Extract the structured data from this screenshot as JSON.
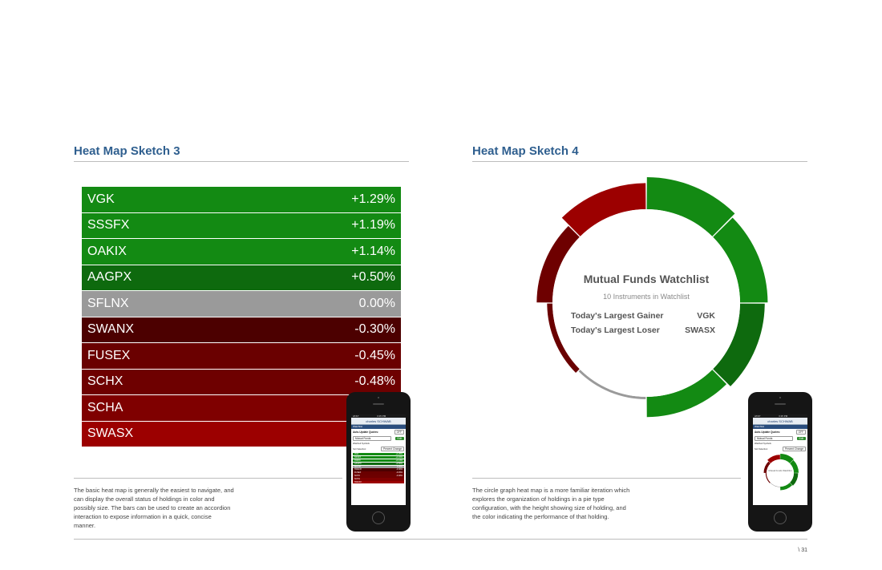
{
  "left": {
    "title": "Heat Map Sketch 3",
    "rows": [
      {
        "symbol": "VGK",
        "change": "+1.29%",
        "color": "#138a13"
      },
      {
        "symbol": "SSSFX",
        "change": "+1.19%",
        "color": "#138a13"
      },
      {
        "symbol": "OAKIX",
        "change": "+1.14%",
        "color": "#138a13"
      },
      {
        "symbol": "AAGPX",
        "change": "+0.50%",
        "color": "#0e6a0e"
      },
      {
        "symbol": "SFLNX",
        "change": "0.00%",
        "color": "#9a9a9a"
      },
      {
        "symbol": "SWANX",
        "change": "-0.30%",
        "color": "#4c0000"
      },
      {
        "symbol": "FUSEX",
        "change": "-0.45%",
        "color": "#6a0000"
      },
      {
        "symbol": "SCHX",
        "change": "-0.48%",
        "color": "#6e0000"
      },
      {
        "symbol": "SCHA",
        "change": "",
        "color": "#7f0000"
      },
      {
        "symbol": "SWASX",
        "change": "",
        "color": "#9c0000"
      }
    ],
    "description": "The basic heat map is generally the easiest to navigate, and can display the overall status of holdings in color and possibly size. The bars can be used to create an accordion interaction to expose information in a quick, concise manner."
  },
  "right": {
    "title": "Heat Map Sketch 4",
    "center_title": "Mutual Funds Watchlist",
    "center_subtitle": "10 Instruments in Watchlist",
    "gainer_label": "Today's Largest Gainer",
    "gainer_value": "VGK",
    "loser_label": "Today's Largest Loser",
    "loser_value": "SWASX",
    "description": "The circle graph heat map is a more familiar iteration which explores the organization of holdings in a pie type configuration, with the height showing size of holding, and the color indicating the performance of that holding.",
    "segments": [
      {
        "color": "#138a13",
        "weight": 1.0
      },
      {
        "color": "#138a13",
        "weight": 0.85
      },
      {
        "color": "#0e6a0e",
        "weight": 0.75
      },
      {
        "color": "#138a13",
        "weight": 0.6
      },
      {
        "color": "#9a9a9a",
        "weight": 0.0
      },
      {
        "color": "#6a0000",
        "weight": 0.1
      },
      {
        "color": "#6e0000",
        "weight": 0.45
      },
      {
        "color": "#9c0000",
        "weight": 0.8
      }
    ]
  },
  "phone": {
    "carrier": "AT&T",
    "time": "3:15 PM",
    "brand": "charles SCHWAB",
    "screen_title": "Watchlist",
    "auto_update_label": "Auto-Update Quotes:",
    "toggle_value": "OFF",
    "select_value": "Mutual Funds",
    "edit_label": "Edit",
    "watched_label": "Watched Symbols",
    "sort_label": "Sort Selection:",
    "sort_value": "Percent Change"
  },
  "page_number": "\\ 31"
}
